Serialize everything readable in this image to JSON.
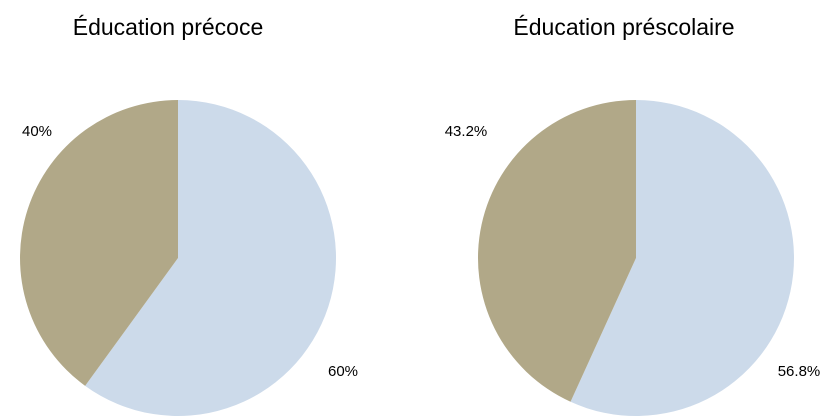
{
  "colors": {
    "slice_a": "#ccdaea",
    "slice_b": "#b1a888"
  },
  "chart_data": [
    {
      "type": "pie",
      "title": "Éducation précoce",
      "slices": [
        {
          "value": 60,
          "label": "60%",
          "color": "#ccdaea"
        },
        {
          "value": 40,
          "label": "40%",
          "color": "#b1a888"
        }
      ]
    },
    {
      "type": "pie",
      "title": "Éducation préscolaire",
      "slices": [
        {
          "value": 56.8,
          "label": "56.8%",
          "color": "#ccdaea"
        },
        {
          "value": 43.2,
          "label": "43.2%",
          "color": "#b1a888"
        }
      ]
    }
  ]
}
